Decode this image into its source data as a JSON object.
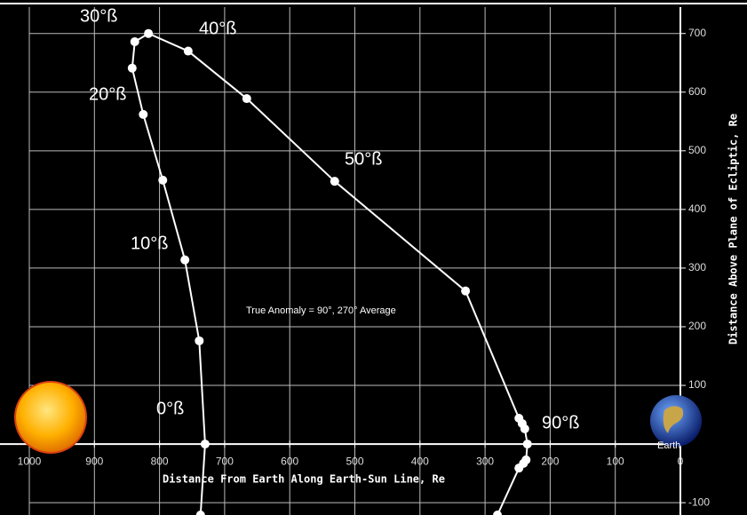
{
  "chart_data": {
    "type": "line",
    "x_label": "Distance From Earth Along Earth-Sun Line, Re",
    "y_label": "Distance Above Plane of Ecliptic, Re",
    "xlim": [
      1000,
      0
    ],
    "ylim": [
      -121,
      745
    ],
    "xticks": [
      1000,
      900,
      800,
      700,
      600,
      500,
      400,
      300,
      200,
      100,
      0
    ],
    "yticks": [
      -100,
      100,
      200,
      300,
      400,
      500,
      600,
      700
    ],
    "grid": true,
    "series": [
      {
        "color": "#ffffff",
        "x": [
          737,
          730,
          739,
          761,
          795,
          825,
          842,
          838,
          817,
          756,
          666,
          531,
          330,
          248,
          243,
          239,
          235,
          237,
          241,
          248,
          281
        ],
        "values": [
          -121,
          0,
          176,
          314,
          450,
          562,
          641,
          686,
          700,
          670,
          589,
          448,
          261,
          44,
          35,
          26,
          0,
          -27,
          -33,
          -41,
          -121
        ]
      }
    ],
    "annotations": [
      "30°ß",
      "40°ß",
      "20°ß",
      "50°ß",
      "10°ß",
      "0°ß",
      "90°ß",
      "True Anomaly = 90°, 270°  Average",
      "Earth"
    ]
  }
}
